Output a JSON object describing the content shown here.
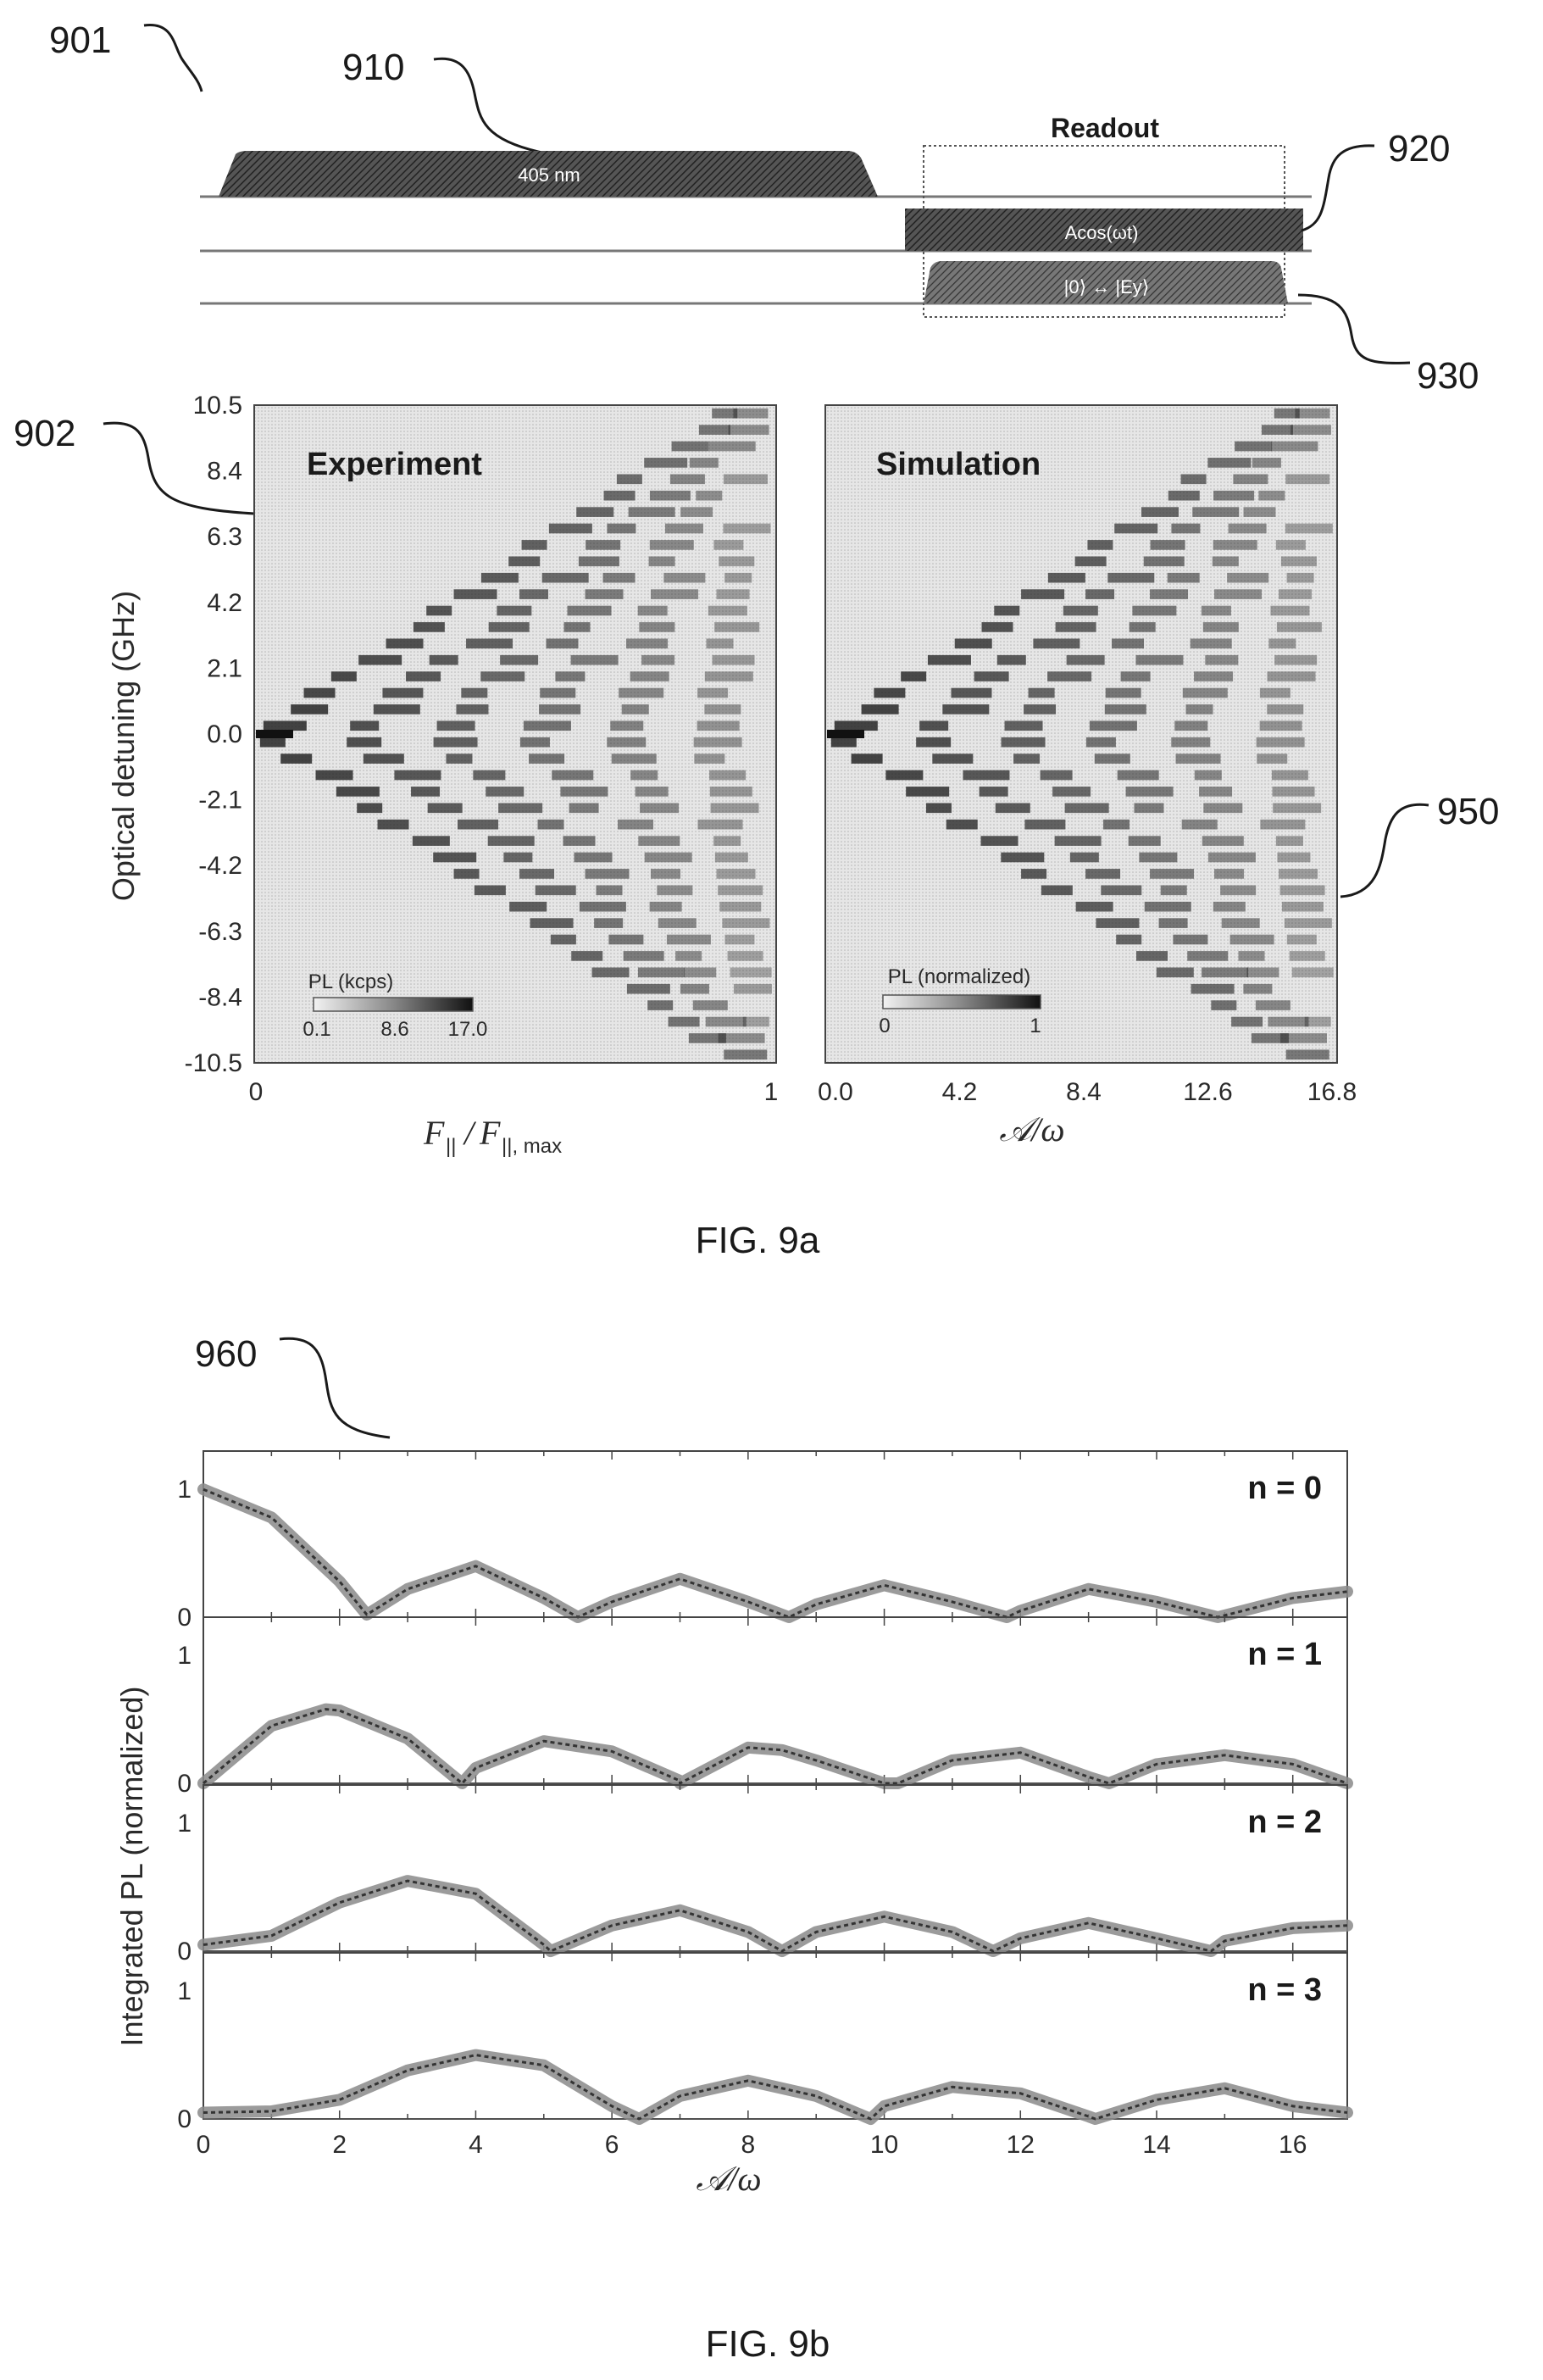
{
  "fig9a": {
    "caption": "FIG. 9a",
    "refs": {
      "r901": "901",
      "r910": "910",
      "r920": "920",
      "r930": "930",
      "r902": "902",
      "r950": "950"
    },
    "pulses": {
      "readout_label": "Readout",
      "laser_label": "405 nm",
      "drive_label": "Acos(ωt)",
      "resonant_label": "|0⟩ ↔ |Ey⟩"
    },
    "experiment": {
      "title": "Experiment",
      "xticks": [
        "0",
        "1"
      ],
      "xlabel_main": "F",
      "xlabel_sub": "||",
      "xlabel_den_sub": "||, max",
      "colorbar_title": "PL (kcps)",
      "colorbar_ticks": [
        "0.1",
        "8.6",
        "17.0"
      ]
    },
    "simulation": {
      "title": "Simulation",
      "xticks": [
        "0.0",
        "4.2",
        "8.4",
        "12.6",
        "16.8"
      ],
      "xlabel": "𝒜/ω",
      "colorbar_title": "PL (normalized)",
      "colorbar_ticks": [
        "0",
        "1"
      ]
    },
    "ylabel": "Optical detuning (GHz)",
    "yticks": [
      "10.5",
      "8.4",
      "6.3",
      "4.2",
      "2.1",
      "0.0",
      "-2.1",
      "-4.2",
      "-6.3",
      "-8.4",
      "-10.5"
    ]
  },
  "fig9b": {
    "caption": "FIG. 9b",
    "ref": "960",
    "ylabel": "Integrated PL (normalized)",
    "xlabel": "𝒜/ω",
    "xticks": [
      "0",
      "2",
      "4",
      "6",
      "8",
      "10",
      "12",
      "14",
      "16"
    ],
    "yticks": [
      "0",
      "1"
    ],
    "panel_labels": [
      "n = 0",
      "n = 1",
      "n = 2",
      "n = 3"
    ]
  },
  "chart_data": [
    {
      "type": "heatmap",
      "title": "Experiment",
      "xlabel": "F||/F||,max",
      "ylabel": "Optical detuning (GHz)",
      "xlim": [
        0,
        1
      ],
      "ylim": [
        -10.5,
        10.5
      ],
      "colorbar": {
        "label": "PL (kcps)",
        "range": [
          0.1,
          17.0
        ]
      }
    },
    {
      "type": "heatmap",
      "title": "Simulation",
      "xlabel": "𝒜/ω",
      "ylabel": "Optical detuning (GHz)",
      "xlim": [
        0,
        16.8
      ],
      "ylim": [
        -10.5,
        10.5
      ],
      "colorbar": {
        "label": "PL (normalized)",
        "range": [
          0,
          1
        ]
      }
    },
    {
      "type": "line",
      "xlabel": "𝒜/ω",
      "ylabel": "Integrated PL (normalized)",
      "xlim": [
        0,
        16.8
      ],
      "ylim": [
        0,
        1.3
      ],
      "panels": [
        {
          "name": "n = 0",
          "x": [
            0,
            1,
            2,
            2.4,
            3,
            4,
            5,
            5.5,
            6,
            7,
            8,
            8.6,
            9,
            10,
            11,
            11.8,
            12,
            13,
            14,
            14.9,
            16,
            16.8
          ],
          "values": [
            1.0,
            0.78,
            0.28,
            0.02,
            0.22,
            0.4,
            0.15,
            0.0,
            0.12,
            0.3,
            0.12,
            0.0,
            0.1,
            0.25,
            0.12,
            0.0,
            0.05,
            0.22,
            0.12,
            0.0,
            0.15,
            0.2
          ]
        },
        {
          "name": "n = 1",
          "x": [
            0,
            1,
            1.8,
            2,
            3,
            3.8,
            4,
            5,
            6,
            7,
            7.0,
            8,
            8.5,
            9,
            10,
            10.2,
            11,
            12,
            13,
            13.3,
            14,
            15,
            16,
            16.8
          ],
          "values": [
            0.0,
            0.45,
            0.58,
            0.57,
            0.35,
            0.0,
            0.12,
            0.33,
            0.25,
            0.02,
            0.0,
            0.28,
            0.26,
            0.18,
            0.0,
            0.0,
            0.18,
            0.24,
            0.05,
            0.0,
            0.15,
            0.22,
            0.15,
            0.0
          ]
        },
        {
          "name": "n = 2",
          "x": [
            0,
            1,
            2,
            3,
            4,
            5,
            5.1,
            6,
            7,
            8,
            8.5,
            9,
            10,
            11,
            11.6,
            12,
            13,
            14,
            14.8,
            15,
            16,
            16.8
          ],
          "values": [
            0.05,
            0.12,
            0.38,
            0.55,
            0.45,
            0.05,
            0.0,
            0.2,
            0.32,
            0.15,
            0.0,
            0.15,
            0.27,
            0.15,
            0.0,
            0.1,
            0.22,
            0.1,
            0.0,
            0.08,
            0.18,
            0.2
          ]
        },
        {
          "name": "n = 3",
          "x": [
            0,
            1,
            2,
            3,
            4,
            5,
            6,
            6.4,
            7,
            8,
            9,
            9.8,
            10,
            11,
            12,
            13,
            13.1,
            14,
            15,
            16,
            16.8
          ],
          "values": [
            0.05,
            0.06,
            0.15,
            0.38,
            0.5,
            0.42,
            0.1,
            0.0,
            0.18,
            0.3,
            0.18,
            0.0,
            0.1,
            0.25,
            0.2,
            0.02,
            0.0,
            0.15,
            0.24,
            0.1,
            0.05
          ]
        }
      ]
    }
  ]
}
